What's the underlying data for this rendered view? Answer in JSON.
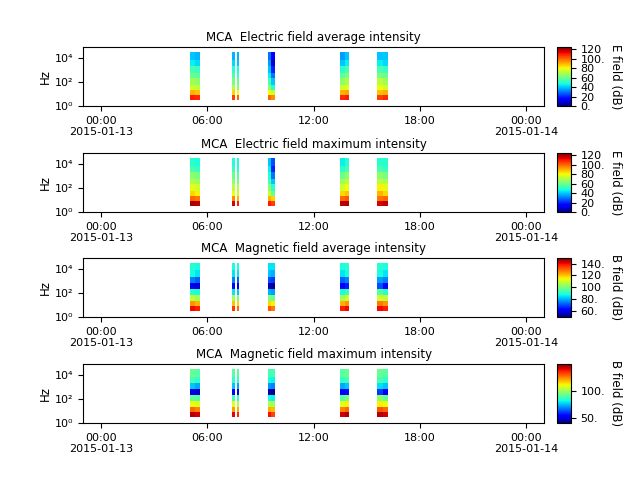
{
  "chart_data": [
    {
      "type": "heatmap",
      "title": "MCA  Electric field average intensity",
      "y_label": "Hz",
      "log": "y",
      "xlim": [
        -1,
        25
      ],
      "xticks": [
        {
          "value": 0,
          "label": "00:00\n2015-01-13"
        },
        {
          "value": 6,
          "label": "06:00"
        },
        {
          "value": 12,
          "label": "12:00"
        },
        {
          "value": 18,
          "label": "18:00"
        },
        {
          "value": 24,
          "label": "00:00\n2015-01-14"
        }
      ],
      "ylim": [
        1,
        80000
      ],
      "yticks": [
        {
          "value": 1,
          "label": "10⁰"
        },
        {
          "value": 100,
          "label": "10²"
        },
        {
          "value": 10000,
          "label": "10⁴"
        }
      ],
      "x_edges": [
        5.0,
        5.3,
        5.6,
        7.4,
        7.55,
        7.65,
        7.8,
        9.4,
        9.6,
        9.8,
        13.5,
        13.75,
        14.0,
        15.6,
        15.9,
        16.2
      ],
      "y_edges": [
        3,
        8,
        20,
        60,
        200,
        600,
        2000,
        7000,
        30000
      ],
      "cells": [
        [
          110,
          108,
          null,
          105,
          null,
          100,
          null,
          100,
          95,
          null,
          108,
          110,
          null,
          105,
          108
        ],
        [
          90,
          88,
          null,
          85,
          null,
          80,
          null,
          80,
          75,
          null,
          90,
          92,
          null,
          88,
          90
        ],
        [
          75,
          72,
          null,
          70,
          null,
          65,
          null,
          65,
          50,
          null,
          75,
          78,
          null,
          80,
          75
        ],
        [
          68,
          65,
          null,
          62,
          null,
          60,
          null,
          55,
          40,
          null,
          65,
          70,
          null,
          72,
          68
        ],
        [
          60,
          58,
          null,
          55,
          null,
          52,
          null,
          45,
          30,
          null,
          58,
          62,
          null,
          62,
          60
        ],
        [
          55,
          52,
          null,
          50,
          null,
          48,
          null,
          40,
          20,
          null,
          50,
          55,
          null,
          55,
          52
        ],
        [
          45,
          42,
          null,
          42,
          null,
          40,
          null,
          35,
          10,
          null,
          40,
          45,
          null,
          45,
          42
        ],
        [
          40,
          38,
          null,
          38,
          null,
          38,
          null,
          30,
          15,
          null,
          35,
          40,
          null,
          40,
          40
        ]
      ],
      "colorbar_label": "E field (dB)",
      "colorbar_range": [
        0,
        125
      ],
      "colorbar_ticks": [
        {
          "value": 0,
          "label": "0."
        },
        20,
        40,
        60,
        80,
        {
          "value": 100,
          "label": "100."
        },
        120
      ]
    },
    {
      "type": "heatmap",
      "title": "MCA  Electric field maximum intensity",
      "y_label": "Hz",
      "log": "y",
      "xlim": [
        -1,
        25
      ],
      "xticks": [
        {
          "value": 0,
          "label": "00:00\n2015-01-13"
        },
        {
          "value": 6,
          "label": "06:00"
        },
        {
          "value": 12,
          "label": "12:00"
        },
        {
          "value": 18,
          "label": "18:00"
        },
        {
          "value": 24,
          "label": "00:00\n2015-01-14"
        }
      ],
      "ylim": [
        1,
        80000
      ],
      "yticks": [
        {
          "value": 1,
          "label": "10⁰"
        },
        {
          "value": 100,
          "label": "10²"
        },
        {
          "value": 10000,
          "label": "10⁴"
        }
      ],
      "x_edges": [
        5.0,
        5.3,
        5.6,
        7.4,
        7.55,
        7.65,
        7.8,
        9.4,
        9.6,
        9.8,
        13.5,
        13.75,
        14.0,
        15.6,
        15.9,
        16.2
      ],
      "y_edges": [
        3,
        8,
        20,
        60,
        200,
        600,
        2000,
        7000,
        30000
      ],
      "cells": [
        [
          120,
          118,
          null,
          115,
          null,
          110,
          null,
          110,
          105,
          null,
          118,
          120,
          null,
          115,
          118
        ],
        [
          100,
          98,
          null,
          95,
          null,
          90,
          null,
          90,
          85,
          null,
          100,
          102,
          null,
          98,
          100
        ],
        [
          85,
          82,
          null,
          80,
          null,
          75,
          null,
          75,
          60,
          null,
          85,
          88,
          null,
          90,
          85
        ],
        [
          78,
          75,
          null,
          72,
          null,
          70,
          null,
          65,
          50,
          null,
          75,
          80,
          null,
          82,
          78
        ],
        [
          70,
          68,
          null,
          65,
          null,
          62,
          null,
          55,
          40,
          null,
          68,
          72,
          null,
          72,
          70
        ],
        [
          65,
          62,
          null,
          60,
          null,
          58,
          null,
          50,
          30,
          null,
          60,
          65,
          null,
          65,
          62
        ],
        [
          55,
          52,
          null,
          52,
          null,
          50,
          null,
          45,
          20,
          null,
          50,
          55,
          null,
          55,
          52
        ],
        [
          50,
          48,
          null,
          48,
          null,
          48,
          null,
          40,
          25,
          null,
          45,
          50,
          null,
          50,
          50
        ]
      ],
      "colorbar_label": "E field (dB)",
      "colorbar_range": [
        0,
        125
      ],
      "colorbar_ticks": [
        {
          "value": 0,
          "label": "0."
        },
        20,
        40,
        60,
        80,
        {
          "value": 100,
          "label": "100."
        },
        120
      ]
    },
    {
      "type": "heatmap",
      "title": "MCA  Magnetic field average intensity",
      "y_label": "Hz",
      "log": "y",
      "xlim": [
        -1,
        25
      ],
      "xticks": [
        {
          "value": 0,
          "label": "00:00\n2015-01-13"
        },
        {
          "value": 6,
          "label": "06:00"
        },
        {
          "value": 12,
          "label": "12:00"
        },
        {
          "value": 18,
          "label": "18:00"
        },
        {
          "value": 24,
          "label": "00:00\n2015-01-14"
        }
      ],
      "ylim": [
        1,
        80000
      ],
      "yticks": [
        {
          "value": 1,
          "label": "10⁰"
        },
        {
          "value": 100,
          "label": "10²"
        },
        {
          "value": 10000,
          "label": "10⁴"
        }
      ],
      "x_edges": [
        5.0,
        5.3,
        5.6,
        7.4,
        7.55,
        7.65,
        7.8,
        9.4,
        9.6,
        9.8,
        13.5,
        13.75,
        14.0,
        15.6,
        15.9,
        16.2
      ],
      "y_edges": [
        3,
        8,
        20,
        60,
        200,
        600,
        2000,
        7000,
        30000
      ],
      "cells": [
        [
          140,
          138,
          null,
          135,
          null,
          130,
          null,
          132,
          128,
          null,
          138,
          140,
          null,
          140,
          138
        ],
        [
          125,
          122,
          null,
          120,
          null,
          118,
          null,
          118,
          115,
          null,
          122,
          125,
          null,
          128,
          125
        ],
        [
          108,
          105,
          null,
          105,
          null,
          100,
          null,
          100,
          98,
          null,
          105,
          110,
          null,
          110,
          108
        ],
        [
          90,
          88,
          null,
          85,
          null,
          82,
          null,
          80,
          78,
          null,
          88,
          92,
          null,
          95,
          90
        ],
        [
          60,
          58,
          null,
          62,
          null,
          60,
          null,
          55,
          52,
          null,
          62,
          65,
          null,
          70,
          62
        ],
        [
          75,
          72,
          null,
          75,
          null,
          72,
          null,
          70,
          68,
          null,
          72,
          75,
          null,
          78,
          75
        ],
        [
          88,
          85,
          null,
          85,
          null,
          85,
          null,
          82,
          80,
          null,
          85,
          88,
          null,
          88,
          85
        ],
        [
          90,
          88,
          null,
          88,
          null,
          88,
          null,
          85,
          85,
          null,
          88,
          90,
          null,
          90,
          88
        ]
      ],
      "colorbar_label": "B field (dB)",
      "colorbar_range": [
        50,
        150
      ],
      "colorbar_ticks": [
        {
          "value": 60,
          "label": "60."
        },
        {
          "value": 80,
          "label": "80."
        },
        100,
        120,
        {
          "value": 140,
          "label": "140."
        }
      ]
    },
    {
      "type": "heatmap",
      "title": "MCA  Magnetic field maximum intensity",
      "y_label": "Hz",
      "log": "y",
      "xlim": [
        -1,
        25
      ],
      "xticks": [
        {
          "value": 0,
          "label": "00:00\n2015-01-13"
        },
        {
          "value": 6,
          "label": "06:00"
        },
        {
          "value": 12,
          "label": "12:00"
        },
        {
          "value": 18,
          "label": "18:00"
        },
        {
          "value": 24,
          "label": "00:00\n2015-01-14"
        }
      ],
      "ylim": [
        1,
        80000
      ],
      "yticks": [
        {
          "value": 1,
          "label": "10⁰"
        },
        {
          "value": 100,
          "label": "10²"
        },
        {
          "value": 10000,
          "label": "10⁴"
        }
      ],
      "x_edges": [
        5.0,
        5.3,
        5.6,
        7.4,
        7.55,
        7.65,
        7.8,
        9.4,
        9.6,
        9.8,
        13.5,
        13.75,
        14.0,
        15.6,
        15.9,
        16.2
      ],
      "y_edges": [
        3,
        8,
        20,
        60,
        200,
        600,
        2000,
        7000,
        30000
      ],
      "cells": [
        [
          145,
          142,
          null,
          140,
          null,
          135,
          null,
          138,
          132,
          null,
          142,
          145,
          null,
          145,
          142
        ],
        [
          128,
          125,
          null,
          122,
          null,
          120,
          null,
          120,
          118,
          null,
          125,
          128,
          null,
          130,
          128
        ],
        [
          110,
          108,
          null,
          108,
          null,
          102,
          null,
          102,
          100,
          null,
          108,
          112,
          null,
          112,
          110
        ],
        [
          92,
          90,
          null,
          88,
          null,
          85,
          null,
          82,
          80,
          null,
          90,
          95,
          null,
          98,
          92
        ],
        [
          50,
          48,
          null,
          52,
          null,
          50,
          null,
          45,
          42,
          null,
          52,
          55,
          null,
          60,
          52
        ],
        [
          75,
          72,
          null,
          75,
          null,
          72,
          null,
          70,
          68,
          null,
          72,
          75,
          null,
          78,
          75
        ],
        [
          88,
          85,
          null,
          85,
          null,
          85,
          null,
          82,
          80,
          null,
          85,
          88,
          null,
          88,
          85
        ],
        [
          92,
          90,
          null,
          90,
          null,
          90,
          null,
          88,
          88,
          null,
          90,
          92,
          null,
          92,
          90
        ]
      ],
      "colorbar_label": "B field (dB)",
      "colorbar_range": [
        40,
        150
      ],
      "colorbar_ticks": [
        {
          "value": 50,
          "label": "50."
        },
        {
          "value": 100,
          "label": "100."
        }
      ]
    }
  ]
}
